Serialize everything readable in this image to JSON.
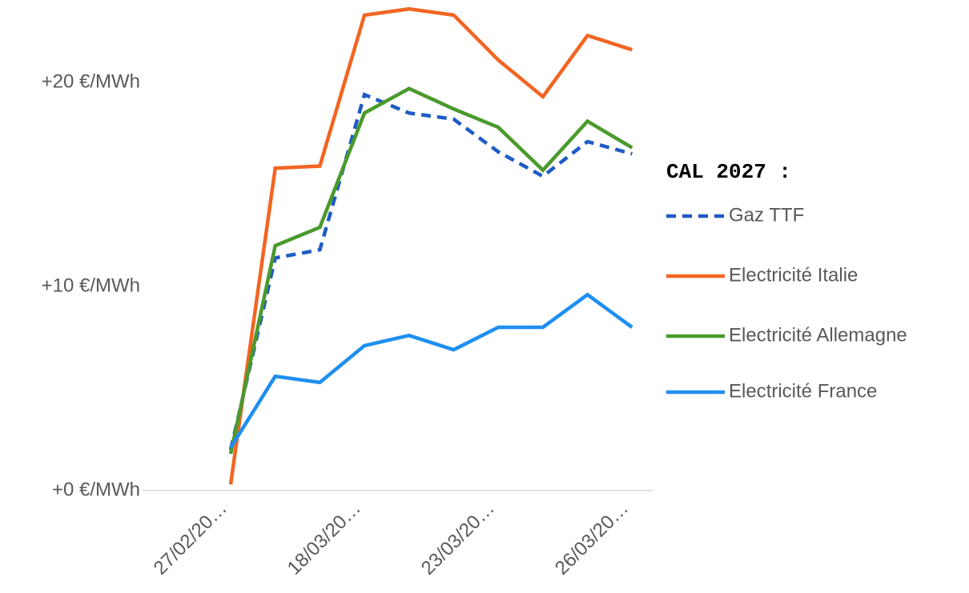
{
  "chart_data": {
    "type": "line",
    "legend_title": "CAL 2027 :",
    "categories": [
      "27/02/20…",
      null,
      null,
      "18/03/20…",
      null,
      null,
      "23/03/20…",
      null,
      null,
      "26/03/20…"
    ],
    "series": [
      {
        "name": "Gaz TTF",
        "color": "#1f5bc4",
        "dash": true,
        "values": [
          2.0,
          11.4,
          11.8,
          19.4,
          18.5,
          18.2,
          16.6,
          15.4,
          17.1,
          16.5
        ]
      },
      {
        "name": "Electricité Italie",
        "color": "#f26522",
        "values": [
          0.3,
          15.8,
          15.9,
          23.3,
          23.6,
          23.3,
          21.1,
          19.3,
          22.3,
          21.6
        ]
      },
      {
        "name": "Electricité Allemagne",
        "color": "#4a9a2c",
        "values": [
          1.8,
          12.0,
          12.9,
          18.5,
          19.7,
          18.7,
          17.8,
          15.7,
          18.1,
          16.8
        ]
      },
      {
        "name": "Electricité France",
        "color": "#1e8ff0",
        "values": [
          2.1,
          5.6,
          5.3,
          7.1,
          7.6,
          6.9,
          8.0,
          8.0,
          9.6,
          8.0
        ]
      }
    ],
    "ylim": [
      0,
      24
    ],
    "yticks": [
      {
        "value": 0,
        "label": "+0 €/MWh"
      },
      {
        "value": 10,
        "label": "+10 €/MWh"
      },
      {
        "value": 20,
        "label": "+20 €/MWh"
      }
    ],
    "grid": false
  }
}
